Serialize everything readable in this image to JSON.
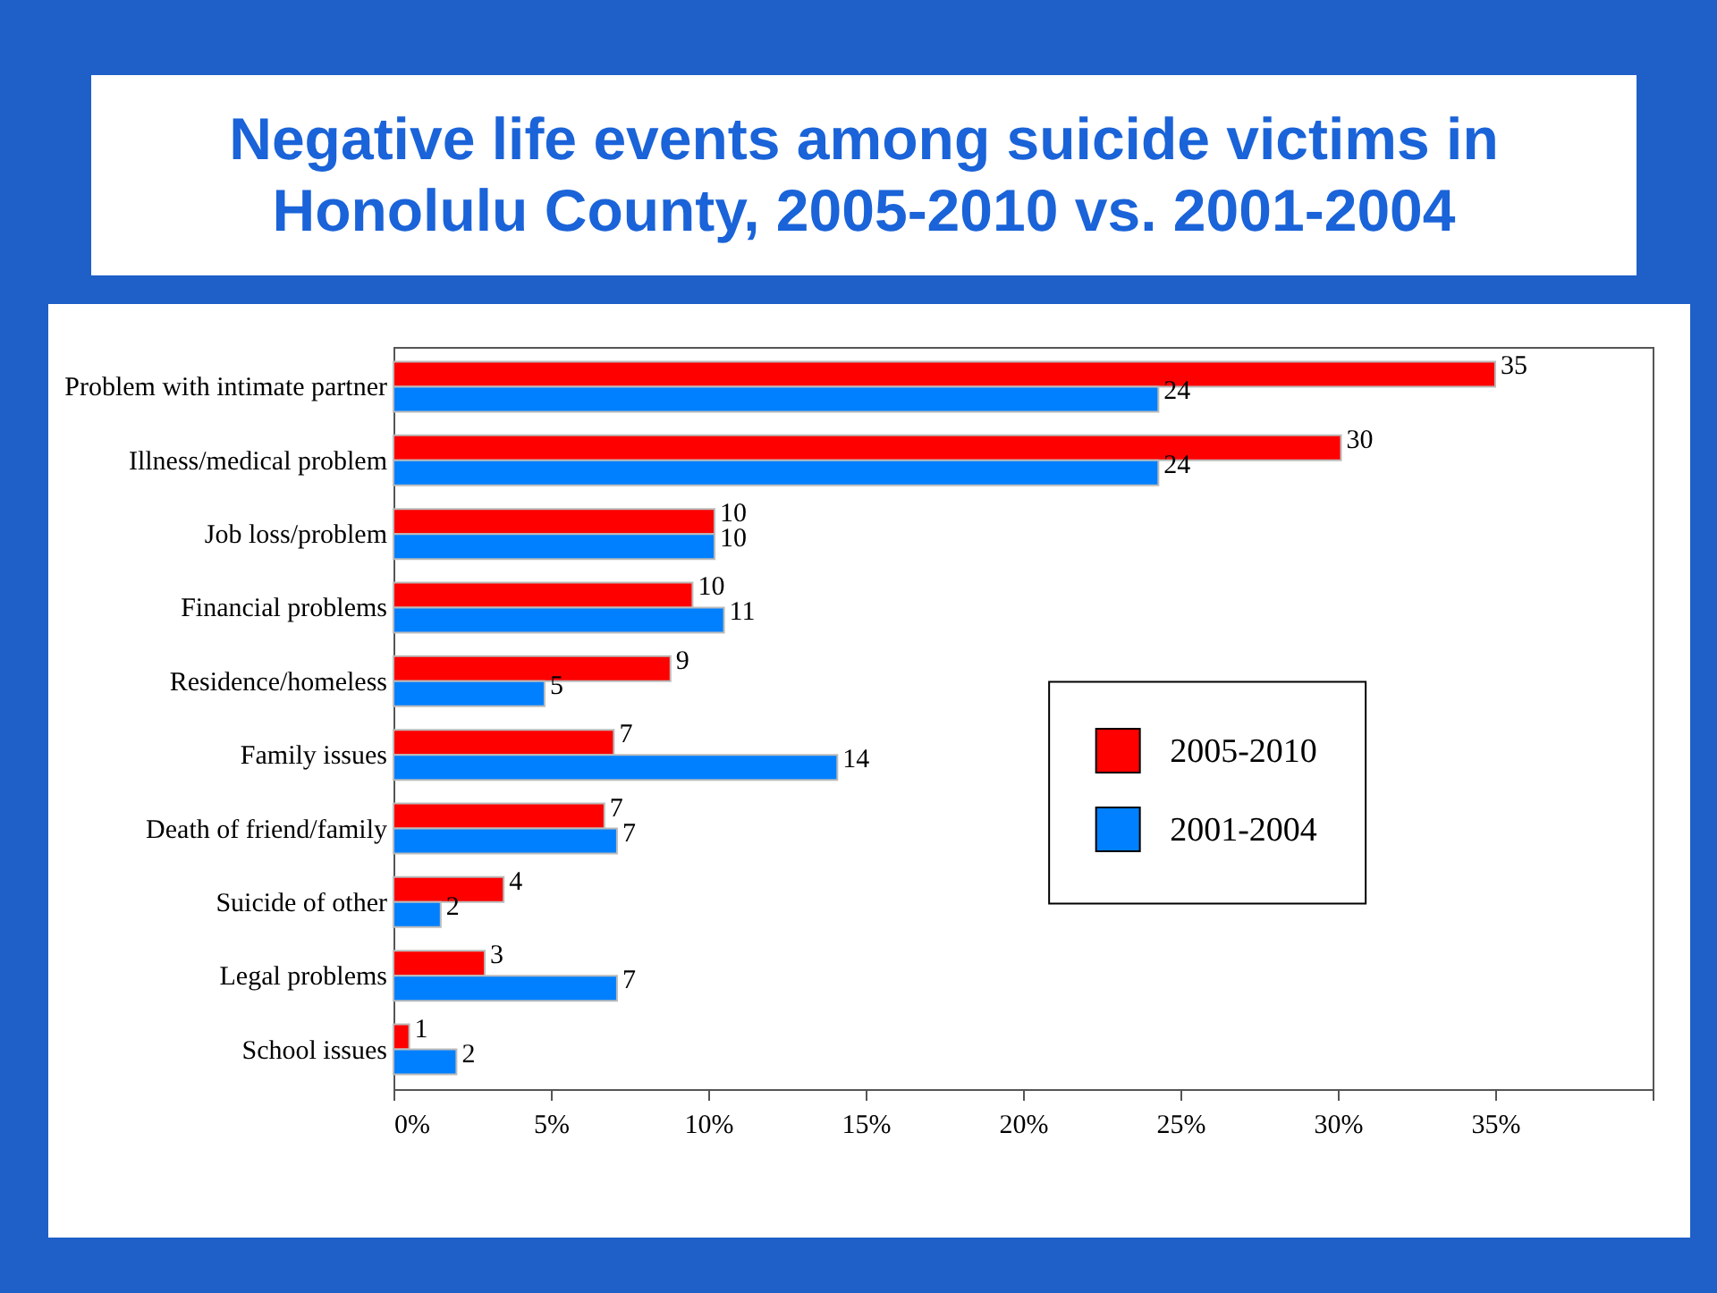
{
  "chart_data": {
    "type": "bar",
    "orientation": "horizontal",
    "title": "Negative life events among suicide victims in Honolulu County, 2005-2010 vs. 2001-2004",
    "categories": [
      "Problem with intimate partner",
      "Illness/medical problem",
      "Job loss/problem",
      "Financial problems",
      "Residence/homeless",
      "Family issues",
      "Death of friend/family",
      "Suicide of other",
      "Legal problems",
      "School issues"
    ],
    "series": [
      {
        "name": "2005-2010",
        "color": "#ff0000",
        "values": [
          35.0,
          30.1,
          10.2,
          9.5,
          8.8,
          7.0,
          6.7,
          3.5,
          2.9,
          0.5
        ],
        "value_labels": [
          "35",
          "30",
          "10",
          "10",
          "9",
          "7",
          "7",
          "4",
          "3",
          "1"
        ]
      },
      {
        "name": "2001-2004",
        "color": "#0080ff",
        "values": [
          24.3,
          24.3,
          10.2,
          10.5,
          4.8,
          14.1,
          7.1,
          1.5,
          7.1,
          2.0
        ],
        "value_labels": [
          "24",
          "24",
          "10",
          "11",
          "5",
          "14",
          "7",
          "2",
          "7",
          "2"
        ]
      }
    ],
    "xlim": [
      0,
      40
    ],
    "xticks": [
      {
        "value": 0,
        "label": "0%"
      },
      {
        "value": 5,
        "label": "5%"
      },
      {
        "value": 10,
        "label": "10%"
      },
      {
        "value": 15,
        "label": "15%"
      },
      {
        "value": 20,
        "label": "20%"
      },
      {
        "value": 25,
        "label": "25%"
      },
      {
        "value": 30,
        "label": "30%"
      },
      {
        "value": 35,
        "label": "35%"
      },
      {
        "value": 40,
        "label": null
      }
    ],
    "grid": false,
    "legend": "right"
  }
}
